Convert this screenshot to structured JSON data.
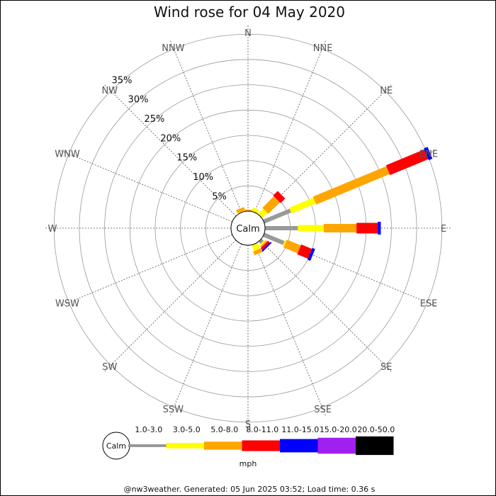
{
  "chart_data": {
    "type": "wind-rose",
    "title": "Wind rose for 04 May 2020",
    "directions": [
      "N",
      "NNE",
      "NE",
      "ENE",
      "E",
      "ESE",
      "SE",
      "SSE",
      "S",
      "SSW",
      "SW",
      "WSW",
      "W",
      "WNW",
      "NW",
      "NNW"
    ],
    "ring_labels": [
      "5%",
      "10%",
      "15%",
      "20%",
      "25%",
      "30%",
      "35%"
    ],
    "ring_values": [
      5,
      10,
      15,
      20,
      25,
      30,
      35
    ],
    "calm_label": "Calm",
    "unit_label": "mph",
    "speed_bins": [
      {
        "label": "1.0-3.0",
        "color": "#999999"
      },
      {
        "label": "3.0-5.0",
        "color": "#ffff00"
      },
      {
        "label": "5.0-8.0",
        "color": "#ffa500"
      },
      {
        "label": "8.0-11.0",
        "color": "#ff0000"
      },
      {
        "label": "11.0-15.0",
        "color": "#0000ff"
      },
      {
        "label": "15.0-20.0",
        "color": "#a020f0"
      },
      {
        "label": "20.0-50.0",
        "color": "#000000"
      }
    ],
    "series": [
      {
        "direction": "N",
        "values": [
          0,
          0,
          0.3,
          0,
          0,
          0,
          0
        ]
      },
      {
        "direction": "NNE",
        "values": [
          0,
          0.8,
          0,
          0,
          0,
          0,
          0
        ]
      },
      {
        "direction": "NE",
        "values": [
          0,
          1.5,
          3.2,
          1.3,
          0,
          0,
          0
        ]
      },
      {
        "direction": "ENE",
        "values": [
          5.7,
          5.2,
          15.7,
          8.2,
          0.8,
          0,
          0
        ]
      },
      {
        "direction": "E",
        "values": [
          6.5,
          5.1,
          6.5,
          4.2,
          0.6,
          0,
          0
        ]
      },
      {
        "direction": "ESE",
        "values": [
          4.3,
          0.3,
          3.0,
          2.3,
          0.6,
          0,
          0
        ]
      },
      {
        "direction": "SE",
        "values": [
          0.6,
          0.3,
          0.3,
          0.5,
          0.3,
          0,
          0
        ]
      },
      {
        "direction": "SSE",
        "values": [
          0,
          1.3,
          0.8,
          0,
          0,
          0,
          0
        ]
      },
      {
        "direction": "S",
        "values": [
          0,
          0,
          0,
          0,
          0,
          0,
          0
        ]
      },
      {
        "direction": "SSW",
        "values": [
          0,
          0,
          0,
          0,
          0,
          0,
          0
        ]
      },
      {
        "direction": "SW",
        "values": [
          0,
          0,
          0,
          0,
          0,
          0,
          0
        ]
      },
      {
        "direction": "WSW",
        "values": [
          0,
          0,
          0,
          0,
          0,
          0,
          0
        ]
      },
      {
        "direction": "W",
        "values": [
          0,
          0,
          0,
          0,
          0,
          0,
          0
        ]
      },
      {
        "direction": "WNW",
        "values": [
          0,
          0,
          0,
          0,
          0,
          0,
          0
        ]
      },
      {
        "direction": "NW",
        "values": [
          0,
          0,
          0,
          0,
          0,
          0,
          0
        ]
      },
      {
        "direction": "NNW",
        "values": [
          0,
          0.2,
          0.6,
          0,
          0,
          0,
          0
        ]
      }
    ],
    "rmax": 37
  },
  "footer": "@nw3weather. Generated: 05 Jun 2025 03:52; Load time: 0.36 s"
}
